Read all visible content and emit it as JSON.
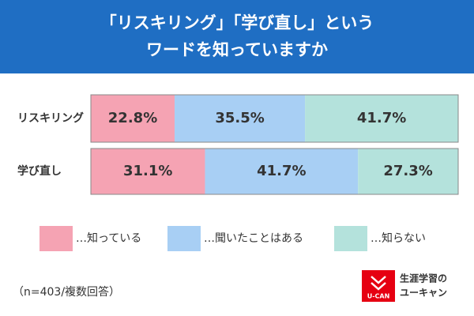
{
  "chart_data": {
    "type": "stacked-bar-horizontal",
    "title": [
      "「リスキリング」「学び直し」という",
      "ワードを知っていますか"
    ],
    "categories": [
      "リスキリング",
      "学び直し"
    ],
    "series": [
      {
        "name": "…知っている",
        "color": "#f5a3b3",
        "values": [
          22.8,
          31.1
        ],
        "value_labels": [
          "22.8%",
          "31.1%"
        ]
      },
      {
        "name": "…聞いたことはある",
        "color": "#a8cff4",
        "values": [
          35.5,
          41.7
        ],
        "value_labels": [
          "35.5%",
          "41.7%"
        ]
      },
      {
        "name": "…知らない",
        "color": "#b4e2dc",
        "values": [
          41.7,
          27.3
        ],
        "value_labels": [
          "41.7%",
          "27.3%"
        ]
      }
    ],
    "note": "（n=403/複数回答）"
  },
  "logo": {
    "mark": "U-CAN",
    "line1": "生涯学習の",
    "line2": "ユーキャン"
  }
}
